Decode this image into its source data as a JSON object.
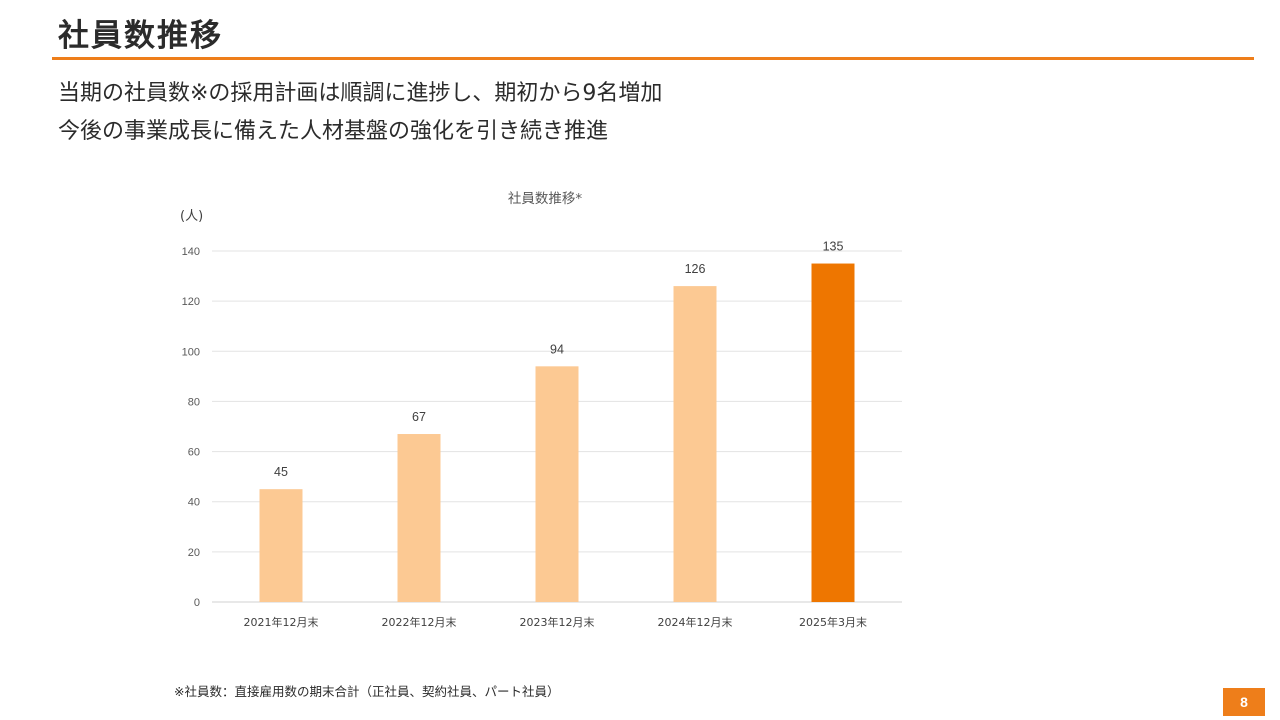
{
  "page": {
    "title": "社員数推移",
    "lead_lines": [
      "当期の社員数※の採用計画は順調に進捗し、期初から9名増加",
      "今後の事業成長に備えた人材基盤の強化を引き続き推進"
    ],
    "footnote": "※社員数：直接雇用数の期末合計（正社員、契約社員、パート社員）",
    "page_number": "8",
    "accent_color": "#ee7e1a"
  },
  "chart_data": {
    "type": "bar",
    "title": "社員数推移*",
    "unit_label": "(人)",
    "categories": [
      "2021年12月末",
      "2022年12月末",
      "2023年12月末",
      "2024年12月末",
      "2025年3月末"
    ],
    "values": [
      45,
      67,
      94,
      126,
      135
    ],
    "data_labels": [
      "45",
      "67",
      "94",
      "126",
      "135"
    ],
    "ylim": [
      0,
      140
    ],
    "yticks": [
      0,
      20,
      40,
      60,
      80,
      100,
      120,
      140
    ],
    "grid": true,
    "bar_colors": [
      "#fcc993",
      "#fcc993",
      "#fcc993",
      "#fcc993",
      "#ee7600"
    ]
  }
}
